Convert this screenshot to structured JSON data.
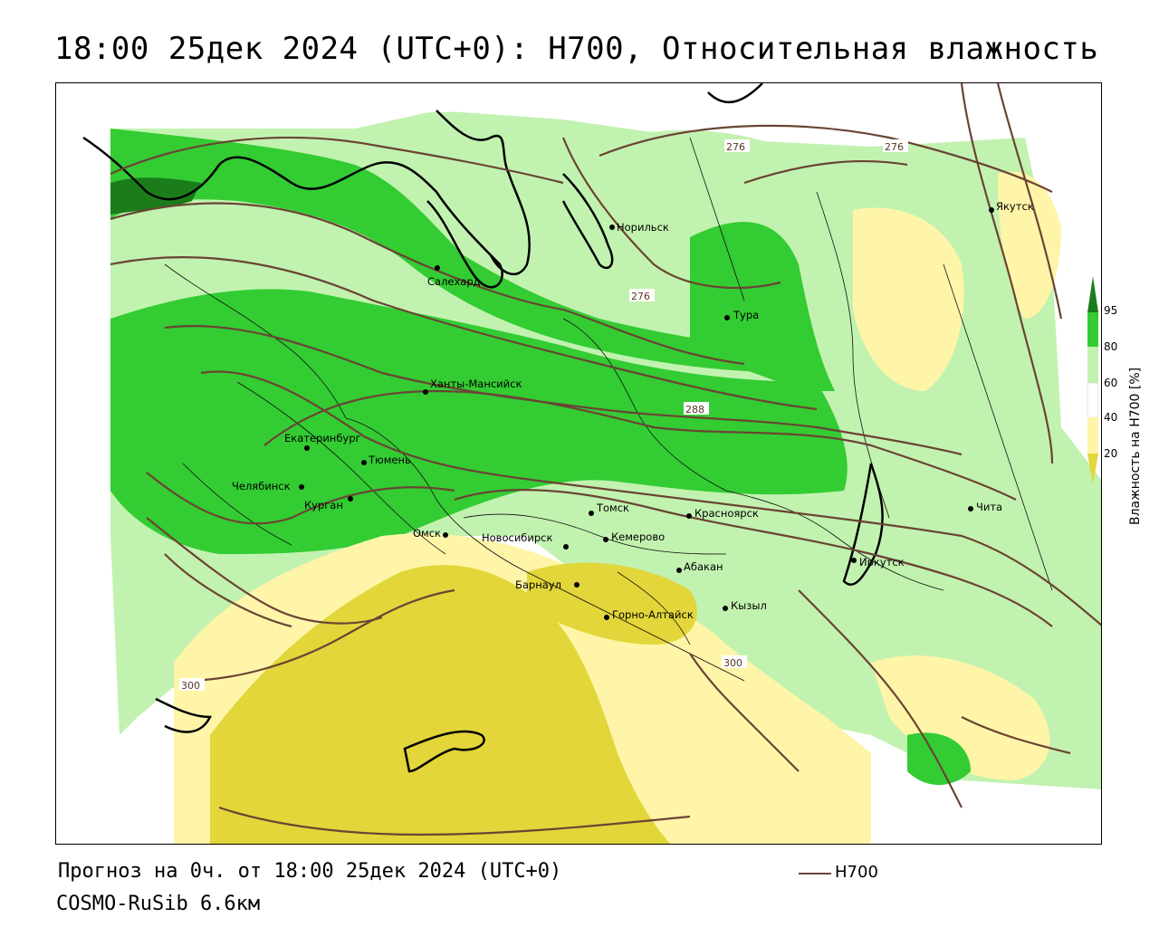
{
  "title": "18:00 25дек 2024 (UTC+0): H700, Относительная влажность",
  "footer": {
    "forecast": "Прогноз на 0ч. от 18:00 25дек 2024 (UTC+0)",
    "model": "COSMO-RuSib 6.6км"
  },
  "legend": {
    "h700_label": "H700"
  },
  "colorbar": {
    "label": "Влажность на H700 [%]",
    "ticks": [
      "95",
      "80",
      "60",
      "40",
      "20"
    ],
    "colors": {
      "very_high": "#1a7d1a",
      "high": "#33cc33",
      "mid": "#c2f2b0",
      "neutral": "#ffffff",
      "low": "#fff5a8",
      "very_low": "#e2d63a"
    }
  },
  "contours": [
    "276",
    "276",
    "276",
    "288",
    "300",
    "300"
  ],
  "cities": [
    {
      "id": "norilsk",
      "name": "Норильск"
    },
    {
      "id": "yakutsk",
      "name": "Якутск"
    },
    {
      "id": "salekhard",
      "name": "Салехард"
    },
    {
      "id": "tura",
      "name": "Тура"
    },
    {
      "id": "khanty",
      "name": "Ханты-Мансийск"
    },
    {
      "id": "ekb",
      "name": "Екатеринбург"
    },
    {
      "id": "tyumen",
      "name": "Тюмень"
    },
    {
      "id": "chel",
      "name": "Челябинск"
    },
    {
      "id": "kurgan",
      "name": "Курган"
    },
    {
      "id": "omsk",
      "name": "Омск"
    },
    {
      "id": "nsk",
      "name": "Новосибирск"
    },
    {
      "id": "tomsk",
      "name": "Томск"
    },
    {
      "id": "kemerovo",
      "name": "Кемерово"
    },
    {
      "id": "krasnoyarsk",
      "name": "Красноярск"
    },
    {
      "id": "irkutsk",
      "name": "Иркутск"
    },
    {
      "id": "chita",
      "name": "Чита"
    },
    {
      "id": "barnaul",
      "name": "Барнаул"
    },
    {
      "id": "abakan",
      "name": "Абакан"
    },
    {
      "id": "kyzyl",
      "name": "Кызыл"
    },
    {
      "id": "gorno",
      "name": "Горно-Алтайск"
    }
  ]
}
